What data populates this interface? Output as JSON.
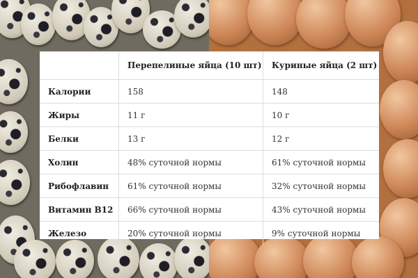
{
  "table": {
    "headers": [
      "",
      "Перепелиные яйца (10 шт)",
      "Куриные яйца (2 шт)"
    ],
    "rows": [
      [
        "Калории",
        "158",
        "148"
      ],
      [
        "Жиры",
        "11 г",
        "10 г"
      ],
      [
        "Белки",
        "13 г",
        "12 г"
      ],
      [
        "Холин",
        "48% суточной нормы",
        "61% суточной нормы"
      ],
      [
        "Рибофлавин",
        "61% суточной нормы",
        "32% суточной нормы"
      ],
      [
        "Витамин B12",
        "66% суточной нормы",
        "43% суточной нормы"
      ],
      [
        "Железо",
        "20% суточной нормы",
        "9% суточной нормы"
      ]
    ]
  },
  "colors": {
    "quail_background": "#6f6b60",
    "chicken_background": "#b3703f",
    "card_background": "#ffffff",
    "grid_line": "#dcdcdc"
  }
}
